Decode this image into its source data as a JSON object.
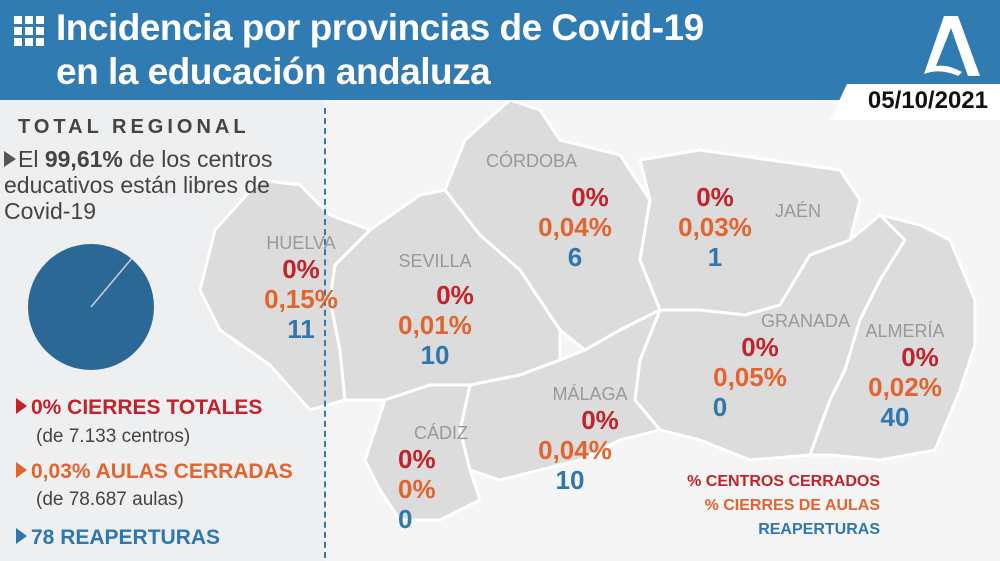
{
  "header": {
    "title_line1": "Incidencia por provincias de Covid-19",
    "title_line2": "en la educación andaluza",
    "date": "05/10/2021",
    "icon": "grid-icon",
    "logo": "junta-andalucia-logo"
  },
  "colors": {
    "header": "#2f7bb2",
    "closed_centers": "#c4222a",
    "closed_classrooms": "#e2642e",
    "reopenings": "#2f77ad",
    "map": "#dcdcdc"
  },
  "regional": {
    "heading": "TOTAL REGIONAL",
    "lead_pre": "El ",
    "lead_bold": "99,61%",
    "lead_post": " de los centros educativos están libres de Covid-19",
    "pie_free_percent": 99.61,
    "closures": "0% CIERRES TOTALES",
    "closures_sub": "(de 7.133 centros)",
    "classrooms": "0,03% AULAS CERRADAS",
    "classrooms_sub": "(de 78.687 aulas)",
    "reopenings": "78 REAPERTURAS"
  },
  "provinces": [
    {
      "name": "HUELVA",
      "centers": "0%",
      "classrooms": "0,15%",
      "reopenings": "11"
    },
    {
      "name": "SEVILLA",
      "centers": "0%",
      "classrooms": "0,01%",
      "reopenings": "10"
    },
    {
      "name": "CÓRDOBA",
      "centers": "0%",
      "classrooms": "0,04%",
      "reopenings": "6"
    },
    {
      "name": "JAÉN",
      "centers": "0%",
      "classrooms": "0,03%",
      "reopenings": "1"
    },
    {
      "name": "GRANADA",
      "centers": "0%",
      "classrooms": "0,05%",
      "reopenings": "0"
    },
    {
      "name": "ALMERÍA",
      "centers": "0%",
      "classrooms": "0,02%",
      "reopenings": "40"
    },
    {
      "name": "MÁLAGA",
      "centers": "0%",
      "classrooms": "0,04%",
      "reopenings": "10"
    },
    {
      "name": "CÁDIZ",
      "centers": "0%",
      "classrooms": "0%",
      "reopenings": "0"
    }
  ],
  "legend": {
    "centers": "% CENTROS CERRADOS",
    "classrooms": "% CIERRES DE AULAS",
    "reopenings": "REAPERTURAS"
  }
}
